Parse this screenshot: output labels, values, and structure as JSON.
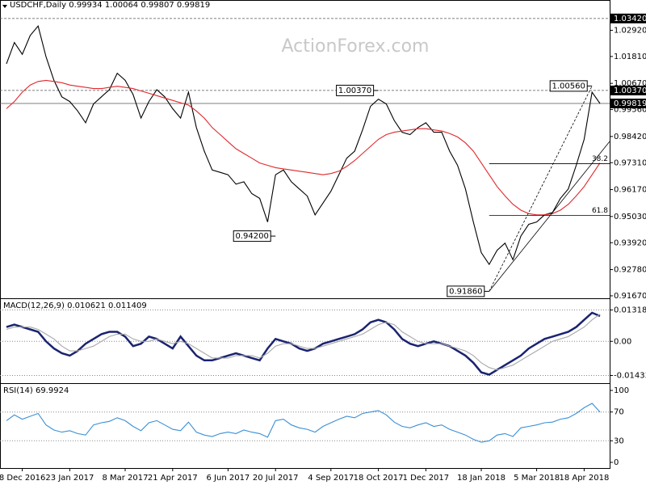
{
  "chart_data": [
    {
      "type": "line",
      "title": "USDCHF,Daily  0.99934 1.00064 0.99807 0.99819",
      "watermark": "ActionForex.com",
      "ylim": [
        0.916,
        1.0386
      ],
      "yticks": [
        {
          "value": 1.0292,
          "label": "1.02920"
        },
        {
          "value": 1.0181,
          "label": "1.01810"
        },
        {
          "value": 1.0067,
          "label": "1.00670"
        },
        {
          "value": 0.9956,
          "label": "0.99560"
        },
        {
          "value": 0.9842,
          "label": "0.98420"
        },
        {
          "value": 0.9731,
          "label": "0.97310"
        },
        {
          "value": 0.9617,
          "label": "0.96170"
        },
        {
          "value": 0.9503,
          "label": "0.95030"
        },
        {
          "value": 0.9392,
          "label": "0.93920"
        },
        {
          "value": 0.9278,
          "label": "0.92780"
        },
        {
          "value": 0.9167,
          "label": "0.91670"
        }
      ],
      "grid": false,
      "levels": [
        {
          "value": 1.0342,
          "label": "1.03420",
          "style": "dashed"
        },
        {
          "value": 1.0037,
          "label": "1.00370",
          "style": "dashed"
        },
        {
          "value": 0.99819,
          "label": "0.99819",
          "style": "solid"
        }
      ],
      "annotations": [
        {
          "x": 47,
          "value": 1.0037,
          "label": "1.00370"
        },
        {
          "x": 34,
          "value": 0.942,
          "label": "0.94200"
        },
        {
          "x": 61,
          "value": 0.9186,
          "label": "0.91860"
        },
        {
          "x": 74,
          "value": 1.0056,
          "label": "1.00560"
        }
      ],
      "fib_levels": [
        {
          "value": 0.9727,
          "label": "38.2"
        },
        {
          "value": 0.9508,
          "label": "61.8"
        }
      ],
      "series": [
        {
          "name": "USDCHF",
          "color": "#000000",
          "values": [
            1.015,
            1.024,
            1.019,
            1.027,
            1.031,
            1.018,
            1.008,
            1.001,
            0.999,
            0.995,
            0.99,
            0.998,
            1.001,
            1.004,
            1.011,
            1.008,
            1.002,
            0.992,
            0.999,
            1.004,
            1.001,
            0.996,
            0.992,
            1.003,
            0.988,
            0.978,
            0.97,
            0.969,
            0.968,
            0.964,
            0.965,
            0.96,
            0.958,
            0.948,
            0.968,
            0.97,
            0.965,
            0.962,
            0.959,
            0.951,
            0.956,
            0.961,
            0.968,
            0.975,
            0.978,
            0.987,
            0.997,
            1.0,
            0.998,
            0.991,
            0.986,
            0.985,
            0.988,
            0.99,
            0.986,
            0.986,
            0.978,
            0.972,
            0.962,
            0.948,
            0.935,
            0.93,
            0.936,
            0.939,
            0.932,
            0.942,
            0.947,
            0.948,
            0.951,
            0.952,
            0.958,
            0.962,
            0.972,
            0.983,
            1.003,
            0.99819
          ]
        },
        {
          "name": "MA",
          "color": "#e0282c",
          "values": [
            0.996,
            0.999,
            1.003,
            1.006,
            1.0075,
            1.008,
            1.0075,
            1.007,
            1.006,
            1.0055,
            1.005,
            1.0045,
            1.0045,
            1.005,
            1.0055,
            1.005,
            1.0045,
            1.0035,
            1.0025,
            1.0015,
            1.0005,
            0.9995,
            0.9985,
            0.9975,
            0.995,
            0.992,
            0.988,
            0.985,
            0.982,
            0.979,
            0.977,
            0.975,
            0.973,
            0.972,
            0.971,
            0.9705,
            0.97,
            0.9695,
            0.969,
            0.9685,
            0.968,
            0.9685,
            0.9695,
            0.9715,
            0.974,
            0.977,
            0.98,
            0.983,
            0.985,
            0.986,
            0.9865,
            0.987,
            0.9875,
            0.9875,
            0.987,
            0.9865,
            0.9855,
            0.984,
            0.9815,
            0.978,
            0.973,
            0.968,
            0.963,
            0.959,
            0.9555,
            0.953,
            0.9515,
            0.951,
            0.951,
            0.9515,
            0.953,
            0.9555,
            0.959,
            0.963,
            0.968,
            0.973
          ]
        }
      ]
    },
    {
      "type": "line",
      "title": "MACD(12,26,9) 0.010621 0.011409",
      "ylim": [
        -0.0162,
        0.0157
      ],
      "yticks": [
        0.01318,
        {
          "value": 0,
          "label": "0.00"
        },
        -0.01433
      ],
      "grid": true,
      "series": [
        {
          "name": "MACD",
          "color": "#1a2370",
          "values": [
            0.006,
            0.007,
            0.006,
            0.005,
            0.004,
            0.0,
            -0.003,
            -0.005,
            -0.006,
            -0.004,
            -0.001,
            0.001,
            0.003,
            0.004,
            0.004,
            0.002,
            -0.002,
            -0.001,
            0.002,
            0.001,
            -0.001,
            -0.003,
            0.002,
            -0.002,
            -0.006,
            -0.008,
            -0.008,
            -0.007,
            -0.006,
            -0.005,
            -0.006,
            -0.007,
            -0.008,
            -0.003,
            0.001,
            0.0,
            -0.001,
            -0.003,
            -0.004,
            -0.003,
            -0.001,
            0.0,
            0.001,
            0.002,
            0.003,
            0.005,
            0.008,
            0.009,
            0.008,
            0.005,
            0.001,
            -0.001,
            -0.002,
            -0.001,
            0.0,
            -0.001,
            -0.002,
            -0.004,
            -0.006,
            -0.009,
            -0.013,
            -0.014,
            -0.012,
            -0.01,
            -0.008,
            -0.006,
            -0.003,
            -0.001,
            0.001,
            0.002,
            0.003,
            0.004,
            0.006,
            0.009,
            0.012,
            0.0106
          ]
        },
        {
          "name": "Signal",
          "color": "#a8a8a8",
          "values": [
            0.005,
            0.006,
            0.006,
            0.006,
            0.005,
            0.003,
            0.001,
            -0.002,
            -0.004,
            -0.004,
            -0.003,
            -0.002,
            0.0,
            0.002,
            0.003,
            0.003,
            0.001,
            0.0,
            0.0,
            0.001,
            0.0,
            -0.001,
            0.0,
            -0.001,
            -0.003,
            -0.005,
            -0.007,
            -0.007,
            -0.007,
            -0.006,
            -0.006,
            -0.006,
            -0.007,
            -0.005,
            -0.002,
            -0.001,
            -0.001,
            -0.002,
            -0.003,
            -0.003,
            -0.002,
            -0.001,
            0.0,
            0.001,
            0.002,
            0.003,
            0.005,
            0.007,
            0.008,
            0.007,
            0.004,
            0.002,
            0.0,
            -0.001,
            -0.001,
            -0.001,
            -0.002,
            -0.003,
            -0.004,
            -0.006,
            -0.009,
            -0.011,
            -0.012,
            -0.011,
            -0.01,
            -0.008,
            -0.006,
            -0.004,
            -0.002,
            0.0,
            0.001,
            0.002,
            0.004,
            0.006,
            0.009,
            0.0114
          ]
        }
      ]
    },
    {
      "type": "line",
      "title": "RSI(14) 69.9924",
      "ylim": [
        0,
        100
      ],
      "yticks": [
        100,
        70,
        30,
        0
      ],
      "grid": true,
      "categories": [
        null,
        null,
        "8 Dec 2016",
        null,
        null,
        null,
        null,
        null,
        "23 Jan 2017",
        null,
        null,
        null,
        null,
        null,
        null,
        "8 Mar 2017",
        null,
        null,
        null,
        null,
        null,
        "21 Apr 2017",
        null,
        null,
        null,
        null,
        null,
        null,
        "6 Jun 2017",
        null,
        null,
        null,
        null,
        null,
        "20 Jul 2017",
        null,
        null,
        null,
        null,
        null,
        null,
        "4 Sep 2017",
        null,
        null,
        null,
        null,
        null,
        "18 Oct 2017",
        null,
        null,
        null,
        null,
        null,
        "1 Dec 2017",
        null,
        null,
        null,
        null,
        null,
        null,
        "18 Jan 2018",
        null,
        null,
        null,
        null,
        null,
        null,
        "5 Mar 2018",
        null,
        null,
        null,
        null,
        null,
        "18 Apr 2018",
        null,
        null
      ],
      "series": [
        {
          "name": "RSI",
          "color": "#3a8fd6",
          "values": [
            58,
            66,
            60,
            64,
            68,
            52,
            45,
            42,
            44,
            40,
            38,
            52,
            55,
            57,
            62,
            58,
            50,
            44,
            55,
            58,
            52,
            46,
            44,
            56,
            42,
            38,
            36,
            40,
            42,
            40,
            45,
            42,
            40,
            35,
            58,
            60,
            52,
            48,
            46,
            42,
            50,
            55,
            60,
            64,
            62,
            68,
            70,
            72,
            66,
            56,
            50,
            48,
            52,
            55,
            50,
            52,
            46,
            42,
            38,
            32,
            28,
            30,
            38,
            40,
            36,
            48,
            50,
            52,
            55,
            56,
            60,
            62,
            68,
            76,
            82,
            70
          ]
        }
      ]
    }
  ]
}
